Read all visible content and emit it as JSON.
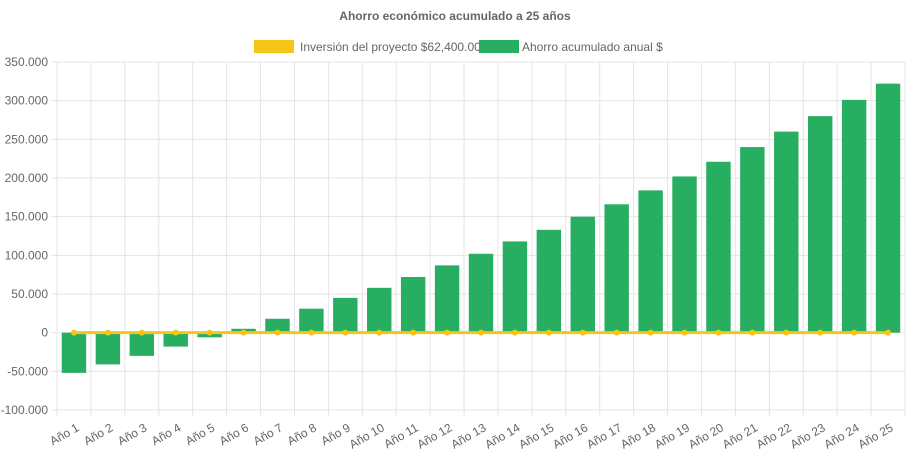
{
  "chart_data": {
    "type": "bar",
    "title": "Ahorro económico acumulado a 25 años",
    "categories": [
      "Año 1",
      "Año 2",
      "Año 3",
      "Año 4",
      "Año 5",
      "Año 6",
      "Año 7",
      "Año 8",
      "Año 9",
      "Año 10",
      "Año 11",
      "Año 12",
      "Año 13",
      "Año 14",
      "Año 15",
      "Año 16",
      "Año 17",
      "Año 18",
      "Año 19",
      "Año 20",
      "Año 21",
      "Año 22",
      "Año 23",
      "Año 24",
      "Año 25"
    ],
    "series": [
      {
        "name": "Inversión del proyecto $62,400.00",
        "type": "line",
        "color": "#f5c518",
        "values": [
          0,
          0,
          0,
          0,
          0,
          0,
          0,
          0,
          0,
          0,
          0,
          0,
          0,
          0,
          0,
          0,
          0,
          0,
          0,
          0,
          0,
          0,
          0,
          0,
          0
        ]
      },
      {
        "name": "Ahorro acumulado anual $",
        "type": "bar",
        "color": "#27ae60",
        "values": [
          -52000,
          -41000,
          -30000,
          -18000,
          -6000,
          5000,
          18000,
          31000,
          45000,
          58000,
          72000,
          87000,
          102000,
          118000,
          133000,
          150000,
          166000,
          184000,
          202000,
          221000,
          240000,
          260000,
          280000,
          301000,
          322000
        ]
      }
    ],
    "y_ticks": [
      "350.000",
      "300.000",
      "250.000",
      "200.000",
      "150.000",
      "100.000",
      "50.000",
      "0",
      "-50.000",
      "-100.000"
    ],
    "y_tick_values": [
      350000,
      300000,
      250000,
      200000,
      150000,
      100000,
      50000,
      0,
      -50000,
      -100000
    ],
    "ylim": [
      -100000,
      350000
    ],
    "grid": true,
    "legend_position": "top"
  }
}
